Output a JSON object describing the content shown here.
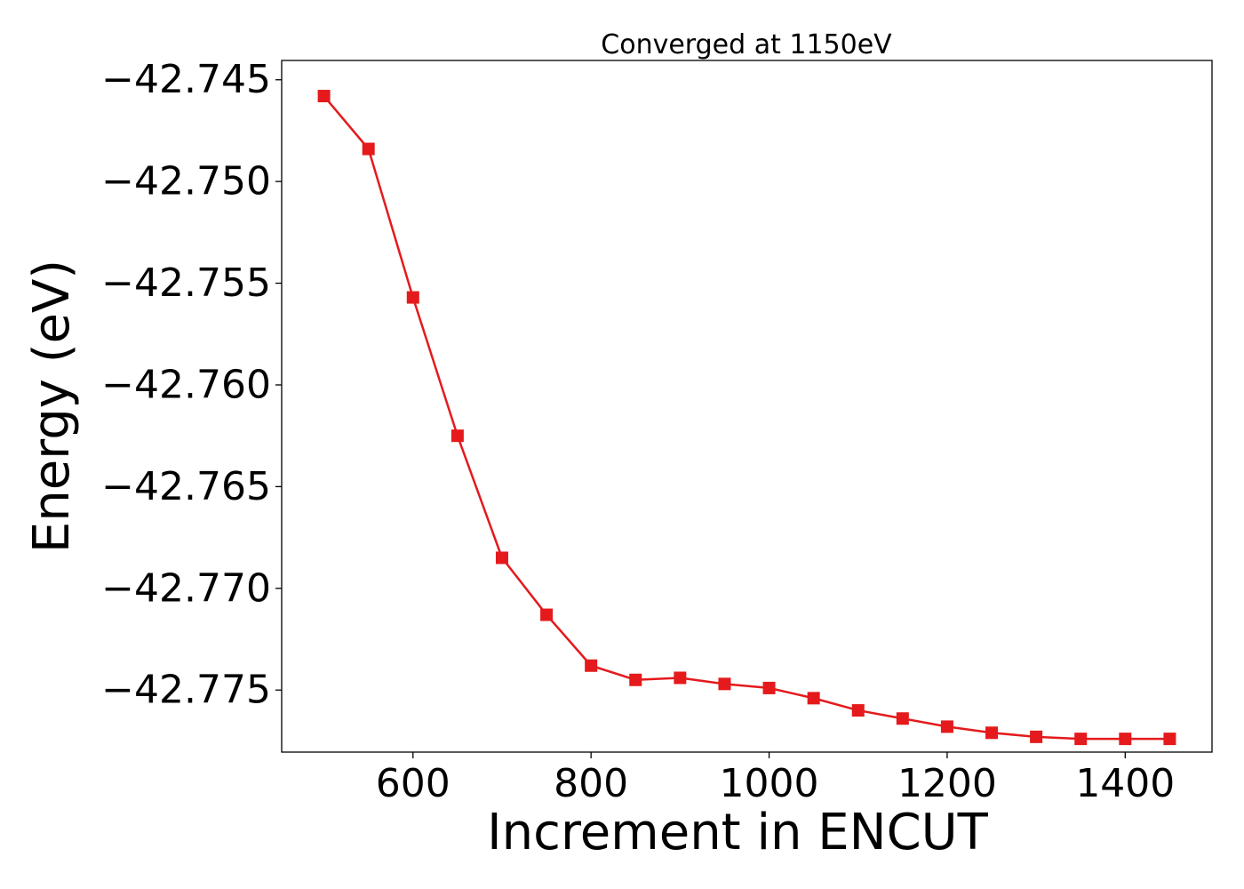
{
  "chart_data": {
    "type": "line",
    "title": "Converged at 1150eV",
    "xlabel": "Increment in ENCUT",
    "ylabel": "Energy (eV)",
    "xlim": [
      452.5,
      1497.5
    ],
    "ylim": [
      -42.77805,
      -42.74405
    ],
    "xticks": [
      600,
      800,
      1000,
      1200,
      1400
    ],
    "yticks": [
      -42.745,
      -42.75,
      -42.755,
      -42.76,
      -42.765,
      -42.77,
      -42.775
    ],
    "xtick_labels": [
      "600",
      "800",
      "1000",
      "1200",
      "1400"
    ],
    "ytick_labels": [
      "−42.745",
      "−42.750",
      "−42.755",
      "−42.760",
      "−42.765",
      "−42.770",
      "−42.775"
    ],
    "grid": false,
    "legend": false,
    "marker": "square",
    "color": "#e41a1c",
    "series": [
      {
        "x": [
          500,
          550,
          600,
          650,
          700,
          750,
          800,
          850,
          900,
          950,
          1000,
          1050,
          1100,
          1150,
          1200,
          1250,
          1300,
          1350,
          1400,
          1450
        ],
        "y": [
          -42.7458,
          -42.7484,
          -42.7557,
          -42.7625,
          -42.7685,
          -42.7713,
          -42.7738,
          -42.7745,
          -42.7744,
          -42.7747,
          -42.7749,
          -42.7754,
          -42.776,
          -42.7764,
          -42.7768,
          -42.7771,
          -42.7773,
          -42.7774,
          -42.7774,
          -42.7774
        ]
      }
    ]
  }
}
